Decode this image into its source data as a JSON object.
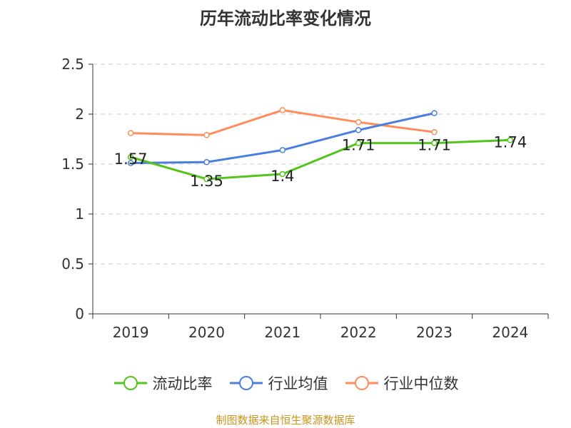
{
  "chart_data": {
    "type": "line",
    "title": "历年流动比率变化情况",
    "categories": [
      "2019",
      "2020",
      "2021",
      "2022",
      "2023",
      "2024"
    ],
    "ylim": [
      0,
      2.5
    ],
    "yticks": [
      "0",
      "0.5",
      "1",
      "1.5",
      "2",
      "2.5"
    ],
    "grid": true,
    "legend_position": "bottom",
    "series": [
      {
        "name": "流动比率",
        "color": "#52c41a",
        "values": [
          1.57,
          1.35,
          1.4,
          1.71,
          1.71,
          1.74
        ],
        "labels": [
          "1.57",
          "1.35",
          "1.4",
          "1.71",
          "1.71",
          "1.74"
        ]
      },
      {
        "name": "行业均值",
        "color": "#4a7fe0",
        "values": [
          1.51,
          1.52,
          1.64,
          1.84,
          2.01,
          null
        ]
      },
      {
        "name": "行业中位数",
        "color": "#ff8c5a",
        "values": [
          1.81,
          1.79,
          2.04,
          1.92,
          1.82,
          null
        ]
      }
    ]
  },
  "source": "制图数据来自恒生聚源数据库"
}
